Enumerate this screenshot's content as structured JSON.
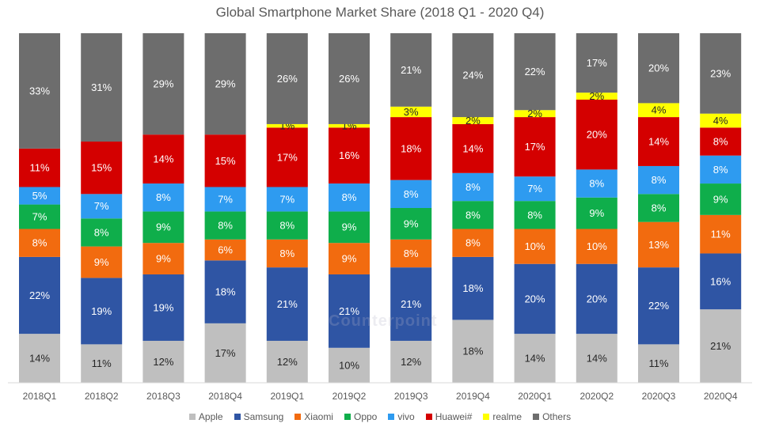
{
  "chart_data": {
    "type": "bar",
    "stacked": true,
    "title": "Global Smartphone Market Share (2018 Q1 - 2020 Q4)",
    "xlabel": "",
    "ylabel": "",
    "ylim": [
      0,
      100
    ],
    "grid": false,
    "legend_position": "bottom",
    "categories": [
      "2018Q1",
      "2018Q2",
      "2018Q3",
      "2018Q4",
      "2019Q1",
      "2019Q2",
      "2019Q3",
      "2019Q4",
      "2020Q1",
      "2020Q2",
      "2020Q3",
      "2020Q4"
    ],
    "series": [
      {
        "name": "Apple",
        "color": "#bfbfbf",
        "label_color": "#262626",
        "values": [
          14,
          11,
          12,
          17,
          12,
          10,
          12,
          18,
          14,
          14,
          11,
          21
        ]
      },
      {
        "name": "Samsung",
        "color": "#2f55a4",
        "label_color": "#ffffff",
        "values": [
          22,
          19,
          19,
          18,
          21,
          21,
          21,
          18,
          20,
          20,
          22,
          16
        ]
      },
      {
        "name": "Xiaomi",
        "color": "#f26b0f",
        "label_color": "#ffffff",
        "values": [
          8,
          9,
          9,
          6,
          8,
          9,
          8,
          8,
          10,
          10,
          13,
          11
        ]
      },
      {
        "name": "Oppo",
        "color": "#0fae4b",
        "label_color": "#ffffff",
        "values": [
          7,
          8,
          9,
          8,
          8,
          9,
          9,
          8,
          8,
          9,
          8,
          9
        ]
      },
      {
        "name": "vivo",
        "color": "#2e9bf0",
        "label_color": "#ffffff",
        "values": [
          5,
          7,
          8,
          7,
          7,
          8,
          8,
          8,
          7,
          8,
          8,
          8
        ]
      },
      {
        "name": "Huawei#",
        "color": "#d40000",
        "label_color": "#ffffff",
        "values": [
          11,
          15,
          14,
          15,
          17,
          16,
          18,
          14,
          17,
          20,
          14,
          8
        ]
      },
      {
        "name": "realme",
        "color": "#ffff00",
        "label_color": "#262626",
        "values": [
          null,
          null,
          null,
          null,
          1,
          1,
          3,
          2,
          2,
          2,
          4,
          4
        ]
      },
      {
        "name": "Others",
        "color": "#6d6d6d",
        "label_color": "#ffffff",
        "values": [
          33,
          31,
          29,
          29,
          26,
          26,
          21,
          24,
          22,
          17,
          20,
          23
        ]
      }
    ],
    "value_suffix": "%"
  },
  "watermark": "Counterpoint"
}
